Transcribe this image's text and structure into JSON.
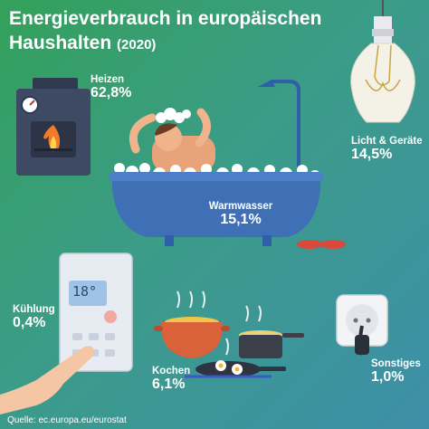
{
  "title": "Energieverbrauch in europäischen Haushalten",
  "title_line1": "Energieverbrauch in europäischen",
  "title_line2": "Haushalten",
  "year": "(2020)",
  "source": "Quelle: ec.europa.eu/eurostat",
  "thermostat_display": "18°",
  "colors": {
    "background_start": "#34a05a",
    "background_end": "#3d8fa8",
    "text": "#ffffff",
    "tub": "#3f6fb5",
    "pot_orange": "#d9623a",
    "furnace": "#3e4a63",
    "flame": "#f07b2a"
  },
  "chart_data": {
    "type": "pictorial",
    "unit": "%",
    "categories": [
      "Heizen",
      "Licht & Geräte",
      "Warmwasser",
      "Kühlung",
      "Kochen",
      "Sonstiges"
    ],
    "values": [
      62.8,
      14.5,
      15.1,
      0.4,
      6.1,
      1.0
    ],
    "labels": [
      "62,8%",
      "14,5%",
      "15,1%",
      "0,4%",
      "6,1%",
      "1,0%"
    ],
    "icons": [
      "furnace-icon",
      "light-bulb-icon",
      "bathtub-icon",
      "thermostat-icon",
      "cooking-pots-icon",
      "power-socket-icon"
    ]
  }
}
